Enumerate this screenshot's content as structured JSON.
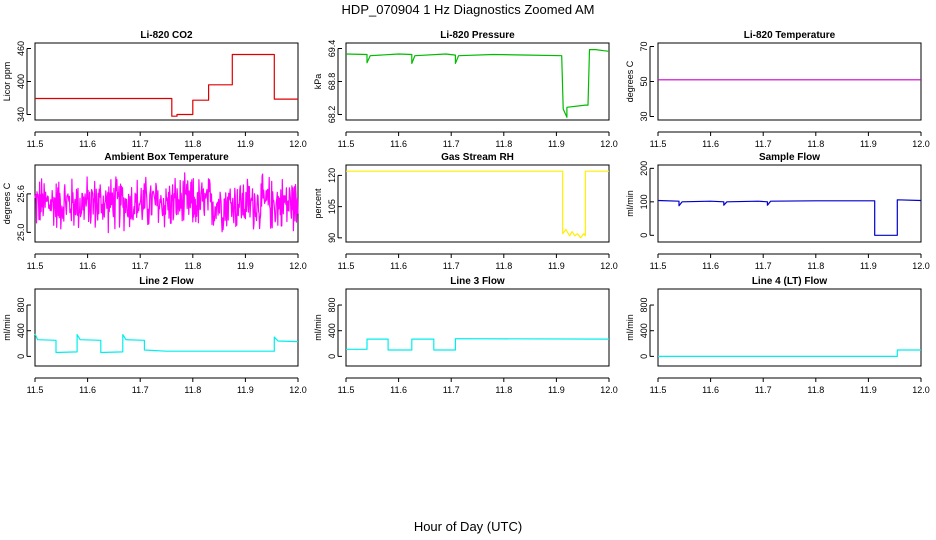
{
  "figure": {
    "title": "HDP_070904  1 Hz Diagnostics Zoomed AM",
    "xlabel": "Hour of Day (UTC)"
  },
  "chart_data": [
    {
      "type": "line",
      "title": "Li-820 CO2",
      "ylabel": "Licor ppm",
      "xlim": [
        11.5,
        12.0
      ],
      "ylim": [
        330,
        470
      ],
      "xticks": [
        "11.5",
        "11.6",
        "11.7",
        "11.8",
        "11.9",
        "12.0"
      ],
      "yticks": [
        "340",
        "400",
        "460"
      ],
      "color": "#dd0000",
      "series": [
        {
          "x": [
            11.5,
            11.76,
            11.76,
            11.77,
            11.77,
            11.8,
            11.8,
            11.83,
            11.83,
            11.875,
            11.875,
            11.955,
            11.955,
            12.0
          ],
          "y": [
            369,
            369,
            337,
            337,
            340,
            340,
            366,
            366,
            394,
            394,
            449,
            449,
            368,
            368
          ]
        }
      ]
    },
    {
      "type": "line",
      "title": "Li-820 Pressure",
      "ylabel": "kPa",
      "xlim": [
        11.5,
        12.0
      ],
      "ylim": [
        68.1,
        69.5
      ],
      "xticks": [
        "11.5",
        "11.6",
        "11.7",
        "11.8",
        "11.9",
        "12.0"
      ],
      "yticks": [
        "68.2",
        "68.8",
        "69.4"
      ],
      "color": "#00bb00",
      "series": [
        {
          "x": [
            11.5,
            11.54,
            11.54,
            11.546,
            11.6,
            11.625,
            11.625,
            11.631,
            11.69,
            11.708,
            11.708,
            11.714,
            11.78,
            11.85,
            11.91,
            11.913,
            11.92,
            11.92,
            11.955,
            11.96,
            11.963,
            11.975,
            11.99,
            12.0
          ],
          "y": [
            69.3,
            69.29,
            69.14,
            69.27,
            69.3,
            69.29,
            69.13,
            69.27,
            69.3,
            69.28,
            69.13,
            69.27,
            69.29,
            69.28,
            69.27,
            68.3,
            68.15,
            68.33,
            68.37,
            68.37,
            69.38,
            69.38,
            69.36,
            69.35
          ]
        }
      ]
    },
    {
      "type": "line",
      "title": "Li-820 Temperature",
      "ylabel": "degrees C",
      "xlim": [
        11.5,
        12.0
      ],
      "ylim": [
        28,
        72
      ],
      "xticks": [
        "11.5",
        "11.6",
        "11.7",
        "11.8",
        "11.9",
        "12.0"
      ],
      "yticks": [
        "30",
        "50",
        "70"
      ],
      "color": "#cc00cc",
      "series": [
        {
          "x": [
            11.5,
            12.0
          ],
          "y": [
            51,
            51
          ]
        }
      ]
    },
    {
      "type": "line",
      "title": "Ambient Box Temperature",
      "ylabel": "degrees C",
      "xlim": [
        11.5,
        12.0
      ],
      "ylim": [
        24.85,
        26.05
      ],
      "xticks": [
        "11.5",
        "11.6",
        "11.7",
        "11.8",
        "11.9",
        "12.0"
      ],
      "yticks": [
        "25.0",
        "25.6"
      ],
      "color": "#ff00ff",
      "noise": {
        "center": 25.45,
        "low": 24.95,
        "high": 25.95
      },
      "series": [
        {
          "x": [
            11.5,
            12.0
          ],
          "y": [
            25.45,
            25.45
          ]
        }
      ]
    },
    {
      "type": "line",
      "title": "Gas Stream RH",
      "ylabel": "percent",
      "xlim": [
        11.5,
        12.0
      ],
      "ylim": [
        88,
        125
      ],
      "xticks": [
        "11.5",
        "11.6",
        "11.7",
        "11.8",
        "11.9",
        "12.0"
      ],
      "yticks": [
        "90",
        "105",
        "120"
      ],
      "color": "#ffee00",
      "series": [
        {
          "x": [
            11.5,
            11.912,
            11.912,
            11.918,
            11.925,
            11.93,
            11.935,
            11.94,
            11.946,
            11.952,
            11.955,
            11.955,
            12.0
          ],
          "y": [
            122,
            122,
            92,
            94,
            91,
            93,
            91,
            92,
            90,
            92,
            91,
            122,
            122
          ]
        }
      ]
    },
    {
      "type": "line",
      "title": "Sample Flow",
      "ylabel": "ml/min",
      "xlim": [
        11.5,
        12.0
      ],
      "ylim": [
        -20,
        210
      ],
      "xticks": [
        "11.5",
        "11.6",
        "11.7",
        "11.8",
        "11.9",
        "12.0"
      ],
      "yticks": [
        "0",
        "100",
        "200"
      ],
      "color": "#0000cc",
      "series": [
        {
          "x": [
            11.5,
            11.54,
            11.54,
            11.546,
            11.6,
            11.625,
            11.625,
            11.631,
            11.69,
            11.708,
            11.708,
            11.714,
            11.8,
            11.912,
            11.912,
            11.955,
            11.955,
            12.0
          ],
          "y": [
            104,
            102,
            88,
            100,
            102,
            100,
            90,
            100,
            102,
            100,
            90,
            102,
            103,
            103,
            0,
            0,
            106,
            104
          ]
        }
      ]
    },
    {
      "type": "line",
      "title": "Line 2 Flow",
      "ylabel": "ml/min",
      "xlim": [
        11.5,
        12.0
      ],
      "ylim": [
        -150,
        1050
      ],
      "xticks": [
        "11.5",
        "11.6",
        "11.7",
        "11.8",
        "11.9",
        "12.0"
      ],
      "yticks": [
        "0",
        "400",
        "800"
      ],
      "color": "#00eeee",
      "series": [
        {
          "x": [
            11.5,
            11.505,
            11.54,
            11.54,
            11.58,
            11.58,
            11.586,
            11.625,
            11.625,
            11.667,
            11.667,
            11.673,
            11.708,
            11.708,
            11.75,
            11.955,
            11.955,
            11.962,
            12.0
          ],
          "y": [
            350,
            260,
            250,
            60,
            70,
            340,
            260,
            250,
            60,
            70,
            340,
            260,
            250,
            100,
            80,
            80,
            300,
            240,
            230
          ]
        }
      ]
    },
    {
      "type": "line",
      "title": "Line 3 Flow",
      "ylabel": "ml/min",
      "xlim": [
        11.5,
        12.0
      ],
      "ylim": [
        -150,
        1050
      ],
      "xticks": [
        "11.5",
        "11.6",
        "11.7",
        "11.8",
        "11.9",
        "12.0"
      ],
      "yticks": [
        "0",
        "400",
        "800"
      ],
      "color": "#00eeee",
      "series": [
        {
          "x": [
            11.5,
            11.54,
            11.54,
            11.58,
            11.58,
            11.625,
            11.625,
            11.667,
            11.667,
            11.708,
            11.708,
            12.0
          ],
          "y": [
            110,
            110,
            270,
            270,
            100,
            100,
            270,
            270,
            100,
            100,
            275,
            270
          ]
        }
      ]
    },
    {
      "type": "line",
      "title": "Line 4 (LT) Flow",
      "ylabel": "ml/min",
      "xlim": [
        11.5,
        12.0
      ],
      "ylim": [
        -150,
        1050
      ],
      "xticks": [
        "11.5",
        "11.6",
        "11.7",
        "11.8",
        "11.9",
        "12.0"
      ],
      "yticks": [
        "0",
        "400",
        "800"
      ],
      "color": "#00eeee",
      "series": [
        {
          "x": [
            11.5,
            11.955,
            11.955,
            12.0
          ],
          "y": [
            0,
            0,
            100,
            100
          ]
        }
      ]
    }
  ]
}
